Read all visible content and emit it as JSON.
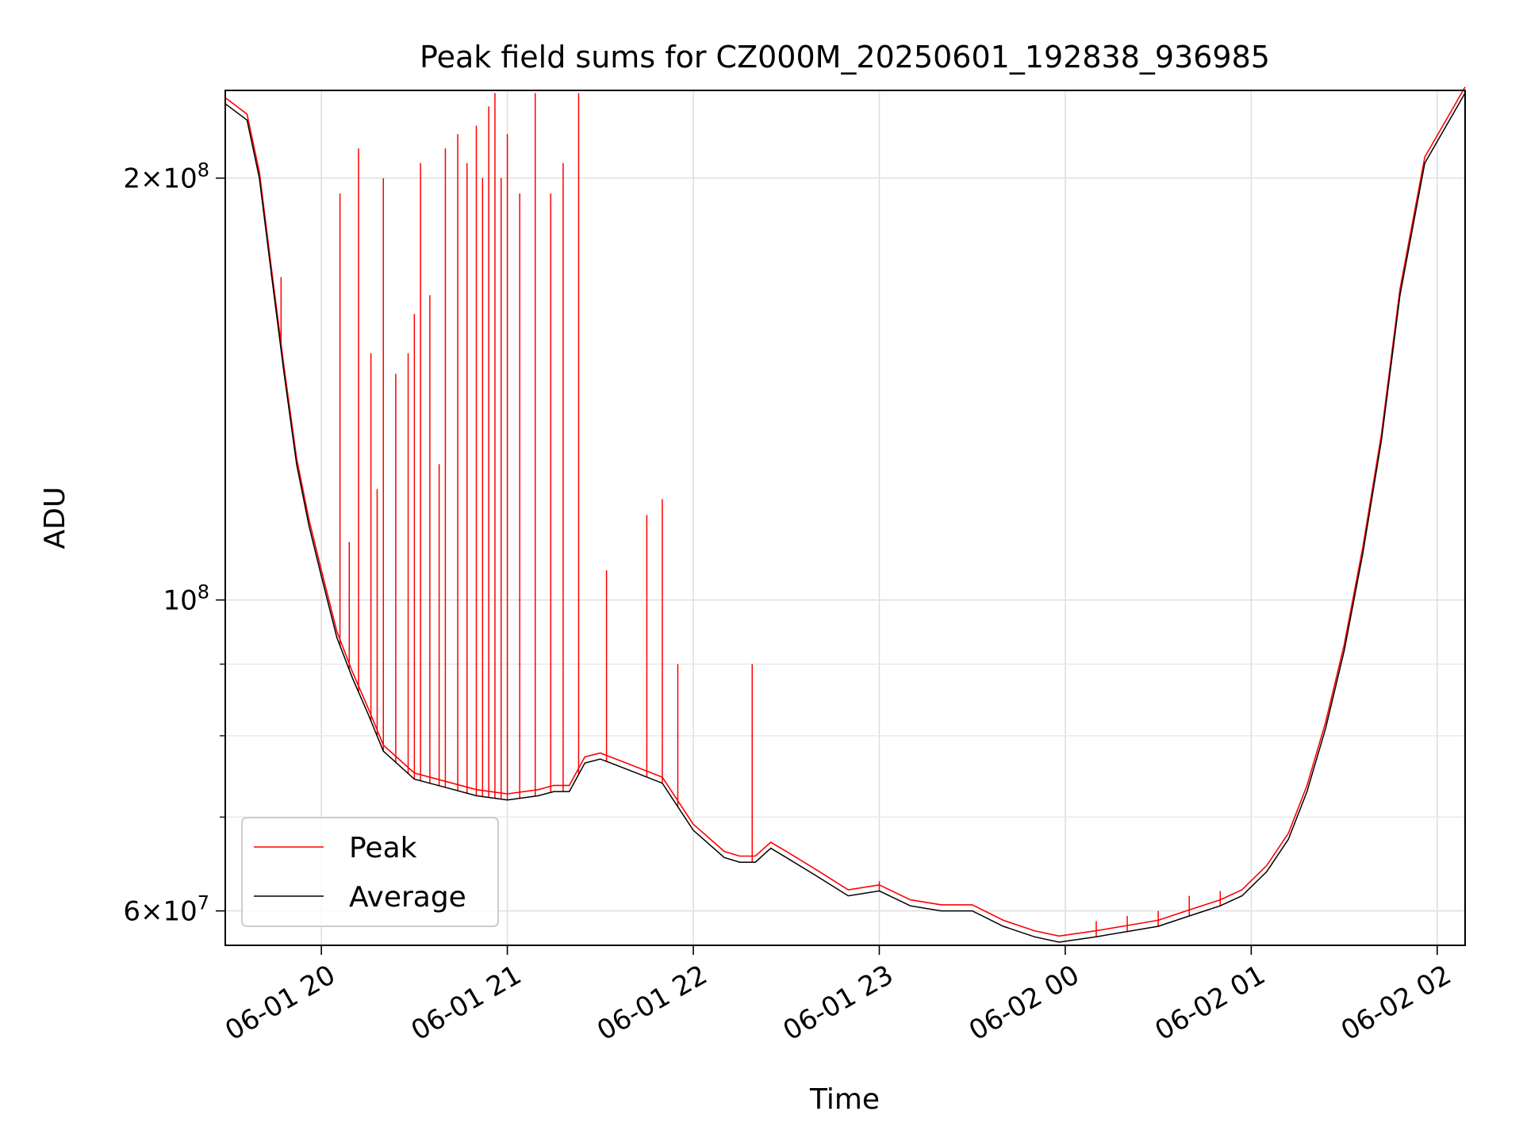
{
  "chart_data": {
    "type": "line",
    "title": "Peak field sums for CZ000M_20250601_192838_936985",
    "xlabel": "Time",
    "ylabel": "ADU",
    "yscale": "log",
    "grid": true,
    "legend_position": "lower-left",
    "xlim": [
      "2025-06-01 19:29",
      "2025-06-02 02:09"
    ],
    "ylim": [
      56700000,
      231000000
    ],
    "x_ticks": [
      "06-01 20",
      "06-01 21",
      "06-01 22",
      "06-01 23",
      "06-02 00",
      "06-02 01",
      "06-02 02"
    ],
    "x_tick_times": [
      "2025-06-01 20:00",
      "2025-06-01 21:00",
      "2025-06-01 22:00",
      "2025-06-01 23:00",
      "2025-06-02 00:00",
      "2025-06-02 01:00",
      "2025-06-02 02:00"
    ],
    "y_major_ticks": [
      {
        "value": 60000000,
        "mantissa": "6",
        "exponent": "7"
      },
      {
        "value": 100000000,
        "mantissa": "",
        "exponent": "8"
      },
      {
        "value": 200000000,
        "mantissa": "2",
        "exponent": "8"
      }
    ],
    "y_minor_ticks": [
      70000000,
      80000000,
      90000000
    ],
    "series": [
      {
        "name": "Average",
        "color": "#000000",
        "x": [
          "2025-06-01 19:29",
          "2025-06-01 19:36",
          "2025-06-01 19:40",
          "2025-06-01 19:44",
          "2025-06-01 19:48",
          "2025-06-01 19:52",
          "2025-06-01 19:56",
          "2025-06-01 20:00",
          "2025-06-01 20:05",
          "2025-06-01 20:10",
          "2025-06-01 20:15",
          "2025-06-01 20:20",
          "2025-06-01 20:30",
          "2025-06-01 20:40",
          "2025-06-01 20:50",
          "2025-06-01 21:00",
          "2025-06-01 21:10",
          "2025-06-01 21:15",
          "2025-06-01 21:20",
          "2025-06-01 21:25",
          "2025-06-01 21:30",
          "2025-06-01 21:40",
          "2025-06-01 21:50",
          "2025-06-01 22:00",
          "2025-06-01 22:10",
          "2025-06-01 22:15",
          "2025-06-01 22:20",
          "2025-06-01 22:25",
          "2025-06-01 22:30",
          "2025-06-01 22:40",
          "2025-06-01 22:50",
          "2025-06-01 23:00",
          "2025-06-01 23:10",
          "2025-06-01 23:20",
          "2025-06-01 23:30",
          "2025-06-01 23:40",
          "2025-06-01 23:50",
          "2025-06-01 23:58",
          "2025-06-02 00:10",
          "2025-06-02 00:20",
          "2025-06-02 00:30",
          "2025-06-02 00:40",
          "2025-06-02 00:50",
          "2025-06-02 00:57",
          "2025-06-02 01:05",
          "2025-06-02 01:12",
          "2025-06-02 01:18",
          "2025-06-02 01:24",
          "2025-06-02 01:30",
          "2025-06-02 01:36",
          "2025-06-02 01:42",
          "2025-06-02 01:48",
          "2025-06-02 01:56",
          "2025-06-02 02:09"
        ],
        "y": [
          226000000,
          220000000,
          200000000,
          170000000,
          145000000,
          125000000,
          113000000,
          104000000,
          94000000,
          88000000,
          83000000,
          78000000,
          74500000,
          73500000,
          72500000,
          72000000,
          72500000,
          73000000,
          73000000,
          76500000,
          77000000,
          75500000,
          74000000,
          68500000,
          65500000,
          65000000,
          65000000,
          66500000,
          65500000,
          63500000,
          61500000,
          62000000,
          60500000,
          60000000,
          60000000,
          58500000,
          57500000,
          57000000,
          57500000,
          58000000,
          58500000,
          59500000,
          60500000,
          61500000,
          64000000,
          67500000,
          73000000,
          81000000,
          92000000,
          108000000,
          130000000,
          165000000,
          205000000,
          230000000
        ]
      },
      {
        "name": "Peak",
        "color": "#ff0000",
        "spikes_x": [
          "2025-06-01 19:47",
          "2025-06-01 20:06",
          "2025-06-01 20:09",
          "2025-06-01 20:12",
          "2025-06-01 20:16",
          "2025-06-01 20:18",
          "2025-06-01 20:20",
          "2025-06-01 20:24",
          "2025-06-01 20:28",
          "2025-06-01 20:30",
          "2025-06-01 20:32",
          "2025-06-01 20:35",
          "2025-06-01 20:38",
          "2025-06-01 20:40",
          "2025-06-01 20:44",
          "2025-06-01 20:47",
          "2025-06-01 20:50",
          "2025-06-01 20:52",
          "2025-06-01 20:54",
          "2025-06-01 20:56",
          "2025-06-01 20:58",
          "2025-06-01 21:00",
          "2025-06-01 21:04",
          "2025-06-01 21:09",
          "2025-06-01 21:14",
          "2025-06-01 21:18",
          "2025-06-01 21:23",
          "2025-06-01 21:32",
          "2025-06-01 21:45",
          "2025-06-01 21:50",
          "2025-06-01 21:55",
          "2025-06-01 22:19",
          "2025-06-01 23:00",
          "2025-06-02 00:10",
          "2025-06-02 00:20",
          "2025-06-02 00:30",
          "2025-06-02 00:40",
          "2025-06-02 00:50"
        ],
        "spikes_y": [
          170000000,
          195000000,
          110000000,
          210000000,
          150000000,
          120000000,
          200000000,
          145000000,
          150000000,
          160000000,
          205000000,
          165000000,
          125000000,
          210000000,
          215000000,
          205000000,
          218000000,
          200000000,
          225000000,
          230000000,
          200000000,
          215000000,
          195000000,
          230000000,
          195000000,
          205000000,
          230000000,
          105000000,
          115000000,
          118000000,
          90000000,
          90000000,
          63000000,
          59000000,
          59500000,
          60000000,
          61500000,
          62000000
        ]
      }
    ]
  }
}
